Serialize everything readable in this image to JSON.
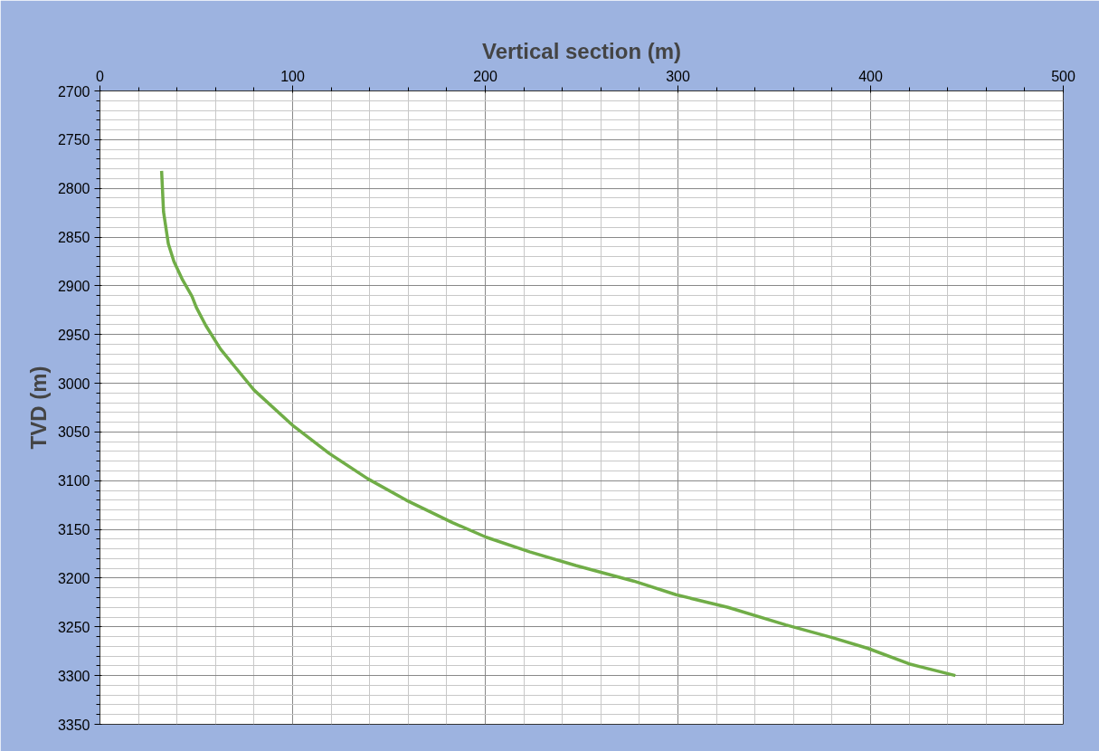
{
  "chart_data": {
    "type": "line",
    "xlabel": "Vertical section (m)",
    "ylabel": "TVD (m)",
    "x": [
      32,
      33,
      35.5,
      38.4,
      42.9,
      47.8,
      50,
      55,
      62.6,
      70,
      80,
      100.5,
      119,
      139,
      159,
      183,
      200.5,
      223,
      247,
      277,
      299,
      326,
      356,
      380,
      398.5,
      420,
      444
    ],
    "series": [
      {
        "color": "#70ad47",
        "values": [
          2782,
          2824,
          2857,
          2875,
          2894,
          2911,
          2922,
          2941,
          2965,
          2983,
          3007,
          3044,
          3072,
          3098,
          3120,
          3143,
          3158,
          3173,
          3187,
          3203,
          3217,
          3230,
          3248,
          3261,
          3272,
          3288,
          3300
        ]
      }
    ],
    "xlim": [
      0,
      500
    ],
    "xticks": [
      0,
      100,
      200,
      300,
      400,
      500
    ],
    "ylim": [
      3350,
      2700
    ],
    "yticks": [
      2700,
      2750,
      2800,
      2850,
      2900,
      2950,
      3000,
      3050,
      3100,
      3150,
      3200,
      3250,
      3300,
      3350
    ],
    "grid": true,
    "marker": "none",
    "line_style": "solid"
  }
}
